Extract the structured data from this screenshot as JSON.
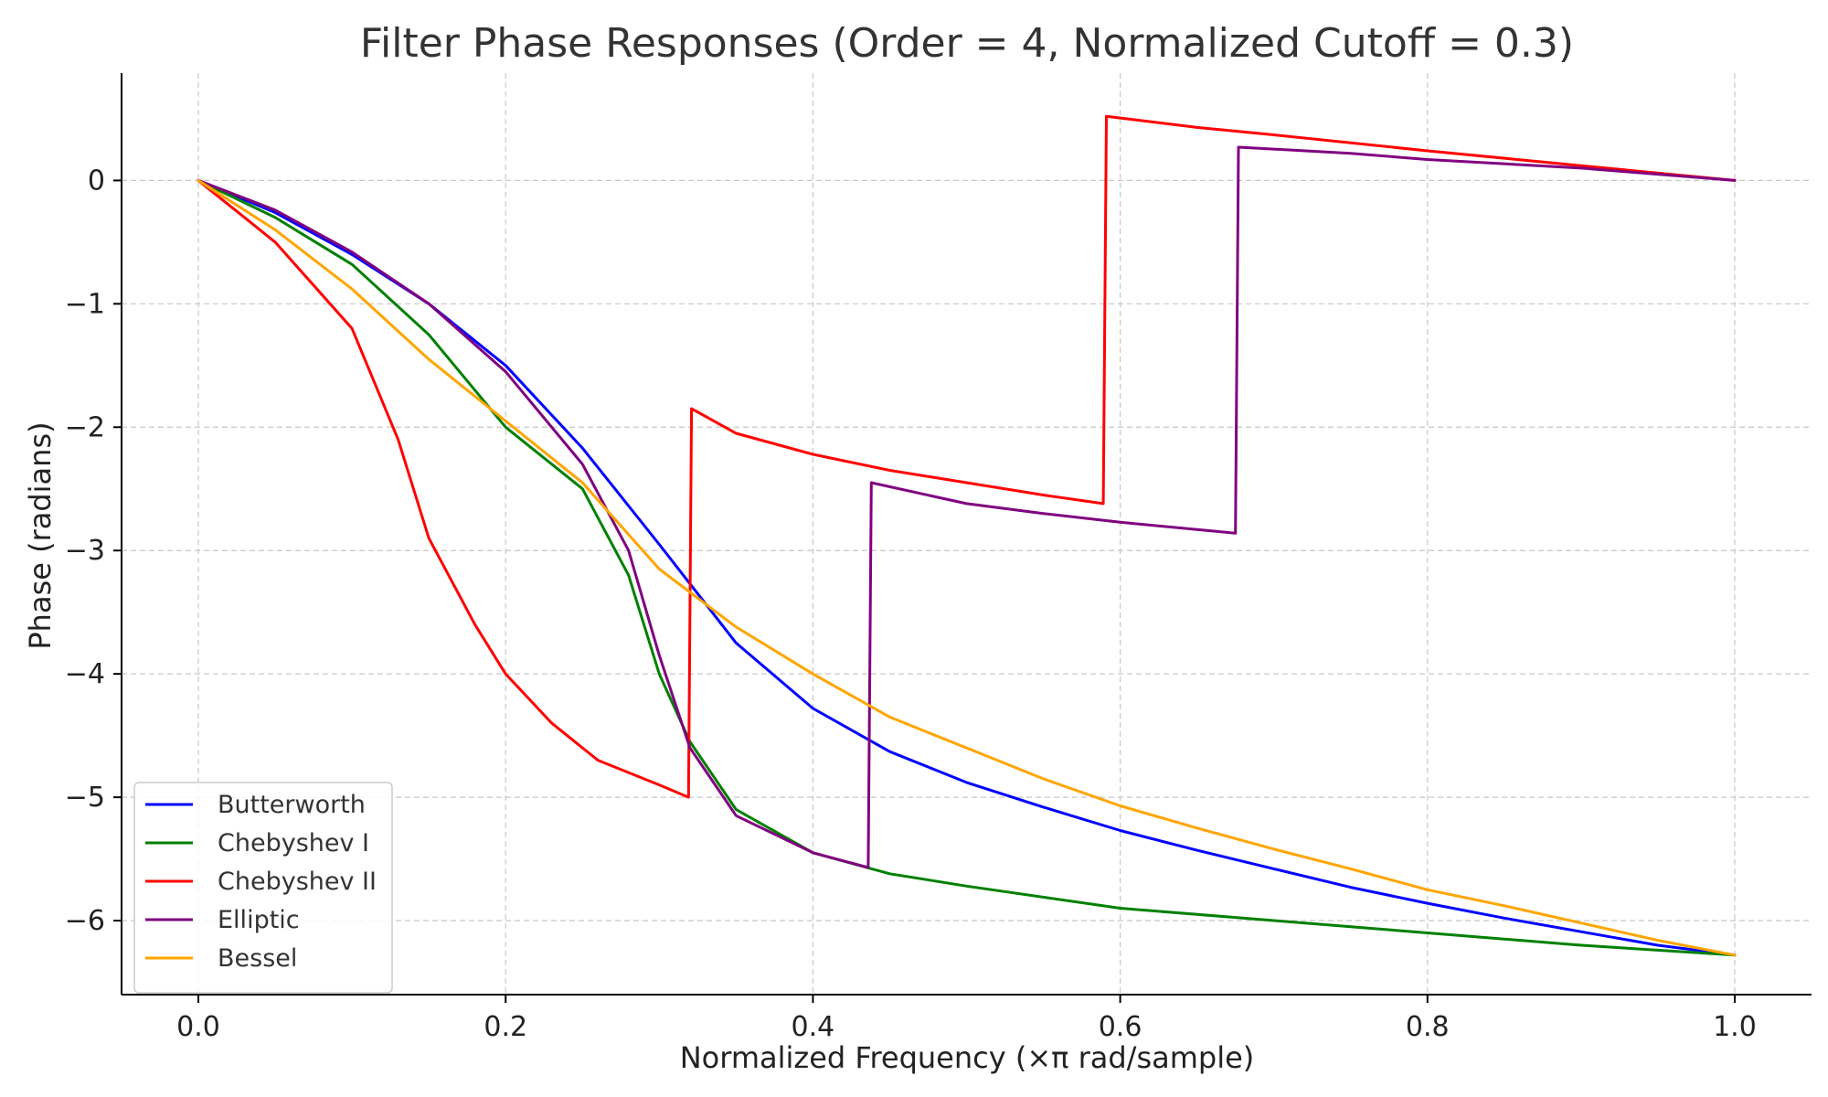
{
  "chart_data": {
    "type": "line",
    "title": "Filter Phase Responses (Order = 4, Normalized Cutoff = 0.3)",
    "xlabel": "Normalized Frequency (×π rad/sample)",
    "ylabel": "Phase (radians)",
    "xlim": [
      -0.05,
      1.05
    ],
    "ylim": [
      -6.6,
      0.87
    ],
    "xticks": [
      0.0,
      0.2,
      0.4,
      0.6,
      0.8,
      1.0
    ],
    "xtick_labels": [
      "0.0",
      "0.2",
      "0.4",
      "0.6",
      "0.8",
      "1.0"
    ],
    "yticks": [
      0,
      -1,
      -2,
      -3,
      -4,
      -5,
      -6
    ],
    "ytick_labels": [
      "0",
      "−1",
      "−2",
      "−3",
      "−4",
      "−5",
      "−6"
    ],
    "grid": true,
    "legend_position": "lower-left",
    "series": [
      {
        "name": "Butterworth",
        "color": "#0000ff",
        "points": [
          [
            0,
            0
          ],
          [
            0.05,
            -0.26
          ],
          [
            0.1,
            -0.6
          ],
          [
            0.15,
            -1.0
          ],
          [
            0.2,
            -1.5
          ],
          [
            0.25,
            -2.17
          ],
          [
            0.3,
            -2.95
          ],
          [
            0.35,
            -3.75
          ],
          [
            0.4,
            -4.28
          ],
          [
            0.45,
            -4.63
          ],
          [
            0.5,
            -4.88
          ],
          [
            0.55,
            -5.08
          ],
          [
            0.6,
            -5.27
          ],
          [
            0.65,
            -5.43
          ],
          [
            0.7,
            -5.58
          ],
          [
            0.75,
            -5.73
          ],
          [
            0.8,
            -5.86
          ],
          [
            0.85,
            -5.98
          ],
          [
            0.9,
            -6.09
          ],
          [
            0.95,
            -6.2
          ],
          [
            1.0,
            -6.28
          ]
        ]
      },
      {
        "name": "Chebyshev I",
        "color": "#008000",
        "points": [
          [
            0,
            0
          ],
          [
            0.05,
            -0.3
          ],
          [
            0.1,
            -0.68
          ],
          [
            0.15,
            -1.25
          ],
          [
            0.2,
            -2.0
          ],
          [
            0.25,
            -2.5
          ],
          [
            0.28,
            -3.2
          ],
          [
            0.3,
            -4.0
          ],
          [
            0.32,
            -4.55
          ],
          [
            0.35,
            -5.1
          ],
          [
            0.4,
            -5.45
          ],
          [
            0.45,
            -5.62
          ],
          [
            0.5,
            -5.72
          ],
          [
            0.6,
            -5.9
          ],
          [
            0.7,
            -6.0
          ],
          [
            0.8,
            -6.1
          ],
          [
            0.9,
            -6.2
          ],
          [
            1.0,
            -6.28
          ]
        ]
      },
      {
        "name": "Chebyshev II",
        "color": "#ff0000",
        "points": [
          [
            0,
            0
          ],
          [
            0.05,
            -0.5
          ],
          [
            0.1,
            -1.2
          ],
          [
            0.13,
            -2.1
          ],
          [
            0.15,
            -2.9
          ],
          [
            0.18,
            -3.6
          ],
          [
            0.2,
            -4.0
          ],
          [
            0.23,
            -4.4
          ],
          [
            0.26,
            -4.7
          ],
          [
            0.3,
            -4.9
          ],
          [
            0.319,
            -5.0
          ],
          [
            0.321,
            -1.85
          ],
          [
            0.35,
            -2.05
          ],
          [
            0.4,
            -2.22
          ],
          [
            0.45,
            -2.35
          ],
          [
            0.5,
            -2.45
          ],
          [
            0.55,
            -2.55
          ],
          [
            0.589,
            -2.62
          ],
          [
            0.591,
            0.52
          ],
          [
            0.65,
            0.43
          ],
          [
            0.7,
            0.37
          ],
          [
            0.8,
            0.24
          ],
          [
            0.9,
            0.12
          ],
          [
            1.0,
            0.0
          ]
        ]
      },
      {
        "name": "Elliptic",
        "color": "#800080",
        "points": [
          [
            0,
            0
          ],
          [
            0.05,
            -0.24
          ],
          [
            0.1,
            -0.58
          ],
          [
            0.15,
            -1.0
          ],
          [
            0.2,
            -1.55
          ],
          [
            0.25,
            -2.3
          ],
          [
            0.28,
            -3.0
          ],
          [
            0.3,
            -3.85
          ],
          [
            0.32,
            -4.6
          ],
          [
            0.35,
            -5.15
          ],
          [
            0.4,
            -5.45
          ],
          [
            0.436,
            -5.57
          ],
          [
            0.438,
            -2.45
          ],
          [
            0.5,
            -2.62
          ],
          [
            0.55,
            -2.7
          ],
          [
            0.6,
            -2.77
          ],
          [
            0.65,
            -2.83
          ],
          [
            0.675,
            -2.86
          ],
          [
            0.677,
            0.27
          ],
          [
            0.75,
            0.22
          ],
          [
            0.8,
            0.17
          ],
          [
            0.9,
            0.1
          ],
          [
            1.0,
            0.0
          ]
        ]
      },
      {
        "name": "Bessel",
        "color": "#ffa500",
        "points": [
          [
            0,
            0
          ],
          [
            0.05,
            -0.4
          ],
          [
            0.1,
            -0.88
          ],
          [
            0.15,
            -1.45
          ],
          [
            0.2,
            -1.95
          ],
          [
            0.25,
            -2.45
          ],
          [
            0.3,
            -3.15
          ],
          [
            0.35,
            -3.62
          ],
          [
            0.4,
            -4.0
          ],
          [
            0.45,
            -4.35
          ],
          [
            0.5,
            -4.6
          ],
          [
            0.55,
            -4.85
          ],
          [
            0.6,
            -5.07
          ],
          [
            0.65,
            -5.25
          ],
          [
            0.7,
            -5.42
          ],
          [
            0.75,
            -5.58
          ],
          [
            0.8,
            -5.75
          ],
          [
            0.85,
            -5.88
          ],
          [
            0.9,
            -6.02
          ],
          [
            0.95,
            -6.16
          ],
          [
            1.0,
            -6.28
          ]
        ]
      }
    ]
  }
}
